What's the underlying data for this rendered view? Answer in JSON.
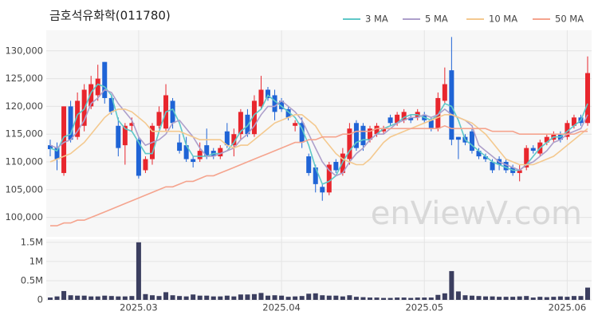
{
  "chart_data": [
    {
      "type": "candlestick",
      "title": "금호석유화학(011780)",
      "watermark": "enViewV.com",
      "up_color": "#e8262d",
      "down_color": "#1f64d6",
      "grid": true,
      "legend": "top-right",
      "open": [
        113000,
        112500,
        108000,
        120000,
        114500,
        116500,
        120000,
        122000,
        128000,
        121500,
        116500,
        113000,
        116500,
        114000,
        108500,
        110500,
        116500,
        116000,
        121000,
        113500,
        113000,
        110500,
        110500,
        113000,
        112000,
        111000,
        115500,
        113000,
        115000,
        118500,
        115000,
        120000,
        123000,
        122000,
        121000,
        119500,
        116500,
        117000,
        111000,
        109000,
        105500,
        104500,
        110000,
        108000,
        110500,
        117000,
        116500,
        114000,
        115000,
        115500,
        118000,
        117000,
        117500,
        118000,
        118000,
        118500,
        117500,
        116000,
        121000,
        126500,
        114500,
        114500,
        115500,
        112000,
        111000,
        110000,
        110500,
        110000,
        109000,
        108000,
        109000,
        112500,
        111500,
        113500,
        114000,
        115000,
        114500,
        116500,
        118000,
        117000
      ],
      "high": [
        114000,
        113500,
        120000,
        121000,
        122500,
        124000,
        125500,
        127500,
        128000,
        122000,
        118000,
        117000,
        118000,
        114500,
        111000,
        117000,
        120000,
        124000,
        121500,
        115000,
        114500,
        111000,
        113500,
        116000,
        112500,
        113000,
        117000,
        116000,
        119500,
        119500,
        122000,
        125500,
        123500,
        123000,
        121500,
        120000,
        117500,
        118000,
        111500,
        109500,
        106000,
        110000,
        110500,
        112500,
        117000,
        117500,
        117000,
        116500,
        117000,
        116500,
        118500,
        119000,
        119500,
        118500,
        119500,
        119000,
        118000,
        122500,
        127000,
        132500,
        114500,
        115000,
        116000,
        112500,
        111500,
        110500,
        111000,
        110500,
        109500,
        109500,
        113000,
        113000,
        114000,
        115000,
        115500,
        115500,
        117500,
        118500,
        118500,
        129000
      ],
      "low": [
        111000,
        108500,
        107500,
        113500,
        114000,
        115500,
        119500,
        121000,
        120500,
        118500,
        111000,
        109500,
        115500,
        107000,
        108000,
        109500,
        116000,
        115500,
        116000,
        111500,
        110000,
        109000,
        110000,
        110500,
        110500,
        110500,
        112500,
        111000,
        114000,
        114500,
        114500,
        119500,
        121000,
        117500,
        119000,
        117500,
        115500,
        112500,
        107500,
        104500,
        103000,
        104000,
        108000,
        107500,
        109500,
        112000,
        112000,
        113500,
        114500,
        115000,
        116500,
        116500,
        117000,
        117000,
        117500,
        117000,
        115500,
        115500,
        120500,
        113000,
        110500,
        113000,
        111500,
        110500,
        110000,
        108000,
        108500,
        108000,
        107500,
        106500,
        108500,
        111500,
        111000,
        113000,
        113500,
        113500,
        114000,
        116000,
        116500,
        116500
      ],
      "close": [
        112300,
        110500,
        120000,
        114000,
        121000,
        123000,
        124000,
        125000,
        121500,
        119000,
        112500,
        116500,
        117000,
        107500,
        110500,
        116500,
        119000,
        122000,
        117000,
        112000,
        110500,
        110000,
        112000,
        111000,
        111000,
        112500,
        113000,
        115000,
        119000,
        115000,
        121000,
        123000,
        121500,
        119000,
        119500,
        118000,
        117000,
        113500,
        108000,
        106000,
        104500,
        109500,
        108500,
        111500,
        116000,
        112500,
        113000,
        116000,
        116500,
        116000,
        117000,
        118500,
        119000,
        117500,
        119000,
        117500,
        116000,
        121500,
        124000,
        114000,
        114000,
        113500,
        112000,
        111000,
        110500,
        108500,
        109500,
        108500,
        108000,
        108500,
        112500,
        112000,
        113500,
        114500,
        115000,
        114000,
        117000,
        118000,
        117000,
        126000
      ],
      "series": [
        {
          "name": "3 MA",
          "color": "#5fc8c8",
          "values": [
            112500,
            112000,
            114500,
            115000,
            118500,
            119500,
            122500,
            124000,
            123500,
            122000,
            117500,
            116000,
            115500,
            113500,
            111500,
            111500,
            115500,
            119000,
            119500,
            117000,
            113000,
            111000,
            111000,
            111000,
            111500,
            111500,
            112000,
            113500,
            115500,
            116500,
            118500,
            119500,
            122000,
            121000,
            120000,
            119000,
            118000,
            116000,
            113000,
            109000,
            106000,
            106500,
            107500,
            110000,
            112000,
            113500,
            114000,
            114000,
            115000,
            116000,
            116500,
            117000,
            118000,
            118500,
            118500,
            118000,
            117500,
            118500,
            120500,
            120000,
            117500,
            114000,
            113000,
            112000,
            111000,
            110000,
            109500,
            109000,
            108500,
            108500,
            109500,
            111000,
            112500,
            113500,
            114500,
            114500,
            115500,
            116500,
            117500,
            120500
          ]
        },
        {
          "name": "5 MA",
          "color": "#ad9fcb",
          "values": [
            113000,
            112500,
            113500,
            114000,
            115500,
            117500,
            120500,
            121500,
            123000,
            122500,
            120500,
            119000,
            117500,
            114500,
            113000,
            113500,
            114000,
            115000,
            117000,
            117500,
            116000,
            114500,
            112500,
            111000,
            111000,
            111500,
            112000,
            112500,
            114000,
            115000,
            116500,
            118500,
            120000,
            120000,
            121000,
            120000,
            119000,
            117500,
            115000,
            112500,
            110000,
            108500,
            107500,
            108000,
            110000,
            111500,
            112500,
            114000,
            115000,
            115000,
            116000,
            117000,
            117500,
            118000,
            118000,
            118500,
            118000,
            118500,
            119500,
            118500,
            118000,
            117500,
            116500,
            113000,
            112000,
            111000,
            110000,
            109500,
            109000,
            108500,
            109500,
            110000,
            111000,
            112000,
            113500,
            114000,
            115000,
            115500,
            116000,
            118500
          ]
        },
        {
          "name": "10 MA",
          "color": "#f4c98f",
          "values": [
            110000,
            110500,
            111000,
            111500,
            112500,
            113500,
            115000,
            116500,
            118000,
            119000,
            119500,
            119500,
            119000,
            118000,
            117000,
            115500,
            115500,
            115500,
            115500,
            115500,
            115000,
            114500,
            114000,
            114000,
            114000,
            114000,
            113000,
            112500,
            113000,
            113000,
            114000,
            115000,
            116000,
            117000,
            117500,
            118000,
            118500,
            118500,
            117500,
            116500,
            114500,
            113000,
            111500,
            110500,
            110000,
            109500,
            109500,
            110500,
            112000,
            113500,
            114500,
            115000,
            115500,
            116000,
            116500,
            117000,
            117500,
            118000,
            118500,
            118500,
            118000,
            117500,
            117000,
            116000,
            115000,
            113500,
            112000,
            110500,
            110000,
            109500,
            109500,
            109500,
            110000,
            110500,
            111000,
            112000,
            113000,
            114000,
            115000,
            116000
          ]
        },
        {
          "name": "50 MA",
          "color": "#f5a48e",
          "values": [
            98500,
            98500,
            99000,
            99000,
            99500,
            99500,
            100000,
            100500,
            101000,
            101500,
            102000,
            102500,
            103000,
            103500,
            104000,
            104500,
            105000,
            105500,
            105500,
            106000,
            106500,
            106500,
            107000,
            107500,
            107500,
            108000,
            108500,
            109000,
            109500,
            110000,
            110500,
            111000,
            111500,
            112000,
            112500,
            113000,
            113500,
            113500,
            114000,
            114000,
            114500,
            114500,
            114500,
            115000,
            115000,
            115500,
            115500,
            115500,
            116000,
            116000,
            116000,
            116000,
            116000,
            116000,
            116000,
            116000,
            116000,
            116000,
            116500,
            116000,
            116000,
            116000,
            116000,
            116000,
            116000,
            115500,
            115500,
            115500,
            115500,
            115000,
            115000,
            115000,
            115000,
            115000,
            115000,
            115000,
            115000,
            115000,
            115500,
            115500
          ]
        }
      ],
      "ylim": [
        96500,
        133700
      ],
      "yticks": [
        {
          "value": 100000,
          "label": "100,000"
        },
        {
          "value": 105000,
          "label": "105,000"
        },
        {
          "value": 110000,
          "label": "110,000"
        },
        {
          "value": 115000,
          "label": "115,000"
        },
        {
          "value": 120000,
          "label": "120,000"
        },
        {
          "value": 125000,
          "label": "125,000"
        },
        {
          "value": 130000,
          "label": "130,000"
        }
      ]
    },
    {
      "type": "bar",
      "color": "#3b3e5f",
      "grid": true,
      "categories": [
        null,
        null,
        null,
        null,
        null,
        null,
        null,
        null,
        null,
        null,
        null,
        null,
        null,
        "2025.03",
        null,
        null,
        null,
        null,
        null,
        null,
        null,
        null,
        null,
        null,
        null,
        null,
        null,
        null,
        null,
        null,
        null,
        null,
        null,
        null,
        "2025.04",
        null,
        null,
        null,
        null,
        null,
        null,
        null,
        null,
        null,
        null,
        null,
        null,
        null,
        null,
        null,
        null,
        null,
        null,
        null,
        null,
        "2025.05",
        null,
        null,
        null,
        null,
        null,
        null,
        null,
        null,
        null,
        null,
        null,
        null,
        null,
        null,
        null,
        null,
        null,
        null,
        null,
        null,
        "2025.06",
        null,
        null,
        null
      ],
      "values": [
        60000,
        90000,
        230000,
        120000,
        110000,
        110000,
        90000,
        90000,
        110000,
        100000,
        90000,
        90000,
        100000,
        1500000,
        150000,
        120000,
        100000,
        200000,
        120000,
        100000,
        90000,
        140000,
        110000,
        110000,
        90000,
        90000,
        110000,
        90000,
        140000,
        140000,
        150000,
        180000,
        110000,
        120000,
        110000,
        80000,
        90000,
        100000,
        160000,
        170000,
        120000,
        110000,
        110000,
        90000,
        120000,
        80000,
        70000,
        60000,
        60000,
        50000,
        50000,
        60000,
        60000,
        50000,
        60000,
        60000,
        60000,
        130000,
        170000,
        750000,
        220000,
        120000,
        110000,
        100000,
        90000,
        90000,
        80000,
        80000,
        80000,
        90000,
        100000,
        60000,
        80000,
        70000,
        80000,
        90000,
        80000,
        100000,
        100000,
        320000
      ],
      "ylim": [
        0,
        1580000
      ],
      "yticks": [
        0,
        {
          "value": 500000,
          "label": "0.5M"
        },
        {
          "value": 1000000,
          "label": "1M"
        },
        {
          "value": 1500000,
          "label": "1.5M"
        }
      ]
    }
  ]
}
